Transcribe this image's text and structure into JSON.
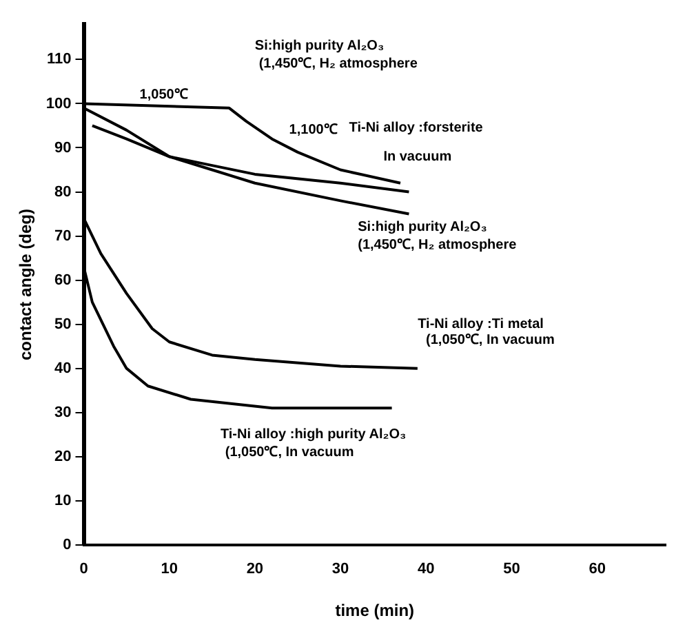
{
  "chart_data": {
    "type": "line",
    "xlabel": "time (min)",
    "ylabel": "contact angle (deg)",
    "xlim": [
      0,
      68
    ],
    "xticks": [
      0,
      10,
      20,
      30,
      40,
      50,
      60
    ],
    "ylim": [
      0,
      118
    ],
    "yticks": [
      0,
      10,
      20,
      30,
      40,
      50,
      60,
      70,
      80,
      90,
      100,
      110
    ],
    "grid": false,
    "legend": false,
    "marker": "none",
    "line_style": "solid",
    "series": [
      {
        "color": "#000000",
        "x": [
          0,
          17,
          19,
          22,
          25,
          30,
          37
        ],
        "values": [
          100,
          99,
          96,
          92,
          89,
          85,
          82
        ]
      },
      {
        "color": "#000000",
        "x": [
          0,
          5,
          10,
          15,
          20,
          30,
          38
        ],
        "values": [
          99,
          94,
          88,
          85,
          82,
          78,
          75
        ]
      },
      {
        "color": "#000000",
        "x": [
          1,
          5,
          10,
          15,
          20,
          30,
          38
        ],
        "values": [
          95,
          92,
          88,
          86,
          84,
          82,
          80
        ]
      },
      {
        "color": "#000000",
        "x": [
          0,
          2,
          5,
          8,
          10,
          15,
          20,
          30,
          39
        ],
        "values": [
          74,
          66,
          57,
          49,
          46,
          43,
          42,
          40.5,
          40
        ]
      },
      {
        "color": "#000000",
        "x": [
          0,
          1,
          3.5,
          5,
          7.5,
          12.5,
          22,
          36
        ],
        "values": [
          63,
          55,
          45,
          40,
          36,
          33,
          31,
          31
        ]
      }
    ],
    "annotations": [
      "Si:high purity Al₂O₃",
      "(1,450℃, H₂ atmosphere",
      "1,050℃",
      "1,100℃",
      "Ti-Ni alloy :forsterite",
      "In vacuum",
      "Si:high purity Al₂O₃",
      "(1,450℃, H₂ atmosphere",
      "Ti-Ni alloy :Ti metal",
      "(1,050℃, In vacuum",
      "Ti-Ni alloy :high purity Al₂O₃",
      "(1,050℃, In vacuum"
    ]
  }
}
